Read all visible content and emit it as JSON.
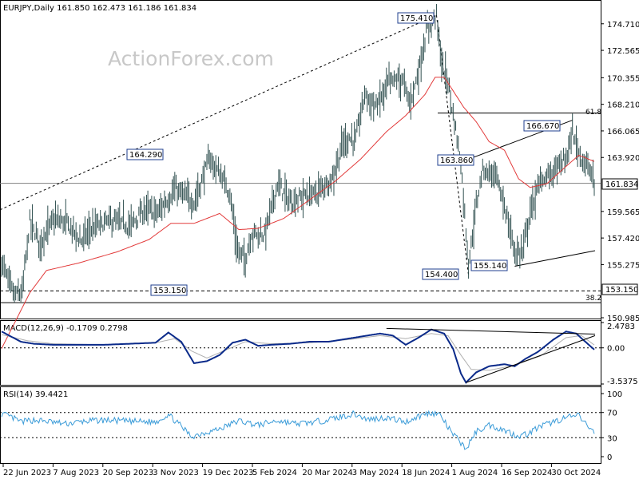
{
  "watermark": "ActionForex.com",
  "colors": {
    "price": "#2f4f4f",
    "ma": "#e23a3a",
    "macd": "#0a2a8a",
    "signal": "#b0b0b0",
    "rsi": "#3a9bd8",
    "grid": "#000000",
    "label_border": "#1f3f8f"
  },
  "chart_data": [
    {
      "type": "line",
      "panel": "price",
      "header": "EURJPY,Daily  161.850 162.473 161.186 161.834",
      "current_price_label": "161.834",
      "ylim": [
        150.985,
        176.5
      ],
      "y_ticks": [
        "174.710",
        "172.565",
        "170.355",
        "168.210",
        "166.065",
        "163.920",
        "161.834",
        "159.565",
        "157.420",
        "155.275",
        "153.150",
        "150.985"
      ],
      "x_tick_labels": [
        "22 Jun 2023",
        "7 Aug 2023",
        "20 Sep 2023",
        "3 Nov 2023",
        "19 Dec 2023",
        "5 Feb 2024",
        "20 Mar 2024",
        "3 May 2024",
        "18 Jun 2024",
        "1 Aug 2024",
        "16 Sep 2024",
        "30 Oct 2024"
      ],
      "annotations": [
        "175.410",
        "164.290",
        "153.150",
        "163.860",
        "166.670",
        "155.140",
        "154.400"
      ],
      "fib_labels": [
        "61.8",
        "38.2"
      ],
      "horizontal_levels": [
        {
          "value": 153.15,
          "label": "153.150"
        },
        {
          "value": 161.834
        },
        {
          "value": 167.5
        },
        {
          "value": 152.2
        }
      ],
      "price_anchors": [
        [
          0,
          155.5
        ],
        [
          5,
          154.0
        ],
        [
          10,
          152.8
        ],
        [
          16,
          153.0
        ],
        [
          22,
          158.7
        ],
        [
          30,
          157.0
        ],
        [
          40,
          158.8
        ],
        [
          50,
          158.7
        ],
        [
          62,
          157.2
        ],
        [
          70,
          158.2
        ],
        [
          85,
          158.8
        ],
        [
          100,
          158.4
        ],
        [
          112,
          159.7
        ],
        [
          122,
          159.5
        ],
        [
          135,
          161.3
        ],
        [
          150,
          160.3
        ],
        [
          162,
          163.8
        ],
        [
          172,
          162.3
        ],
        [
          178,
          161.0
        ],
        [
          184,
          156.3
        ],
        [
          190,
          155.8
        ],
        [
          195,
          157.8
        ],
        [
          205,
          157.7
        ],
        [
          215,
          161.8
        ],
        [
          225,
          160.3
        ],
        [
          235,
          160.8
        ],
        [
          245,
          161.0
        ],
        [
          258,
          162.3
        ],
        [
          266,
          165.0
        ],
        [
          270,
          165.5
        ],
        [
          276,
          165.3
        ],
        [
          283,
          169.0
        ],
        [
          292,
          168.0
        ],
        [
          302,
          170.0
        ],
        [
          312,
          170.3
        ],
        [
          318,
          168.3
        ],
        [
          325,
          170.8
        ],
        [
          332,
          174.5
        ],
        [
          339,
          175.4
        ],
        [
          343,
          171.5
        ],
        [
          348,
          170.0
        ],
        [
          355,
          165.5
        ],
        [
          358,
          163.5
        ],
        [
          364,
          155.3
        ],
        [
          370,
          160.0
        ],
        [
          375,
          163.0
        ],
        [
          385,
          162.5
        ],
        [
          392,
          160.0
        ],
        [
          400,
          156.3
        ],
        [
          406,
          156.3
        ],
        [
          412,
          159.5
        ],
        [
          420,
          162.0
        ],
        [
          430,
          162.8
        ],
        [
          440,
          163.8
        ],
        [
          445,
          165.9
        ],
        [
          450,
          164.3
        ],
        [
          455,
          163.5
        ],
        [
          460,
          162.5
        ],
        [
          462,
          161.834
        ]
      ],
      "ma_anchors": [
        [
          0,
          148.5
        ],
        [
          22,
          153.0
        ],
        [
          35,
          154.8
        ],
        [
          60,
          155.4
        ],
        [
          90,
          156.3
        ],
        [
          115,
          157.3
        ],
        [
          132,
          158.6
        ],
        [
          150,
          158.6
        ],
        [
          170,
          159.4
        ],
        [
          185,
          158.1
        ],
        [
          200,
          158.2
        ],
        [
          220,
          159.0
        ],
        [
          240,
          160.5
        ],
        [
          260,
          162.0
        ],
        [
          280,
          163.8
        ],
        [
          300,
          166.0
        ],
        [
          315,
          167.3
        ],
        [
          330,
          169.0
        ],
        [
          338,
          170.4
        ],
        [
          345,
          170.4
        ],
        [
          352,
          169.3
        ],
        [
          360,
          168.0
        ],
        [
          370,
          166.8
        ],
        [
          380,
          165.2
        ],
        [
          392,
          164.5
        ],
        [
          403,
          162.2
        ],
        [
          412,
          161.5
        ],
        [
          425,
          161.8
        ],
        [
          440,
          163.2
        ],
        [
          450,
          164.1
        ],
        [
          462,
          163.6
        ]
      ]
    },
    {
      "type": "line",
      "panel": "macd",
      "header": "MACD(12,26,9) -0.1709 0.2798",
      "ylim": [
        -3.5375,
        2.4783
      ],
      "y_ticks": [
        "2.4783",
        "0.00",
        "-3.5375"
      ],
      "macd_anchors": [
        [
          0,
          1.6
        ],
        [
          15,
          0.6
        ],
        [
          25,
          0.4
        ],
        [
          40,
          0.3
        ],
        [
          60,
          0.3
        ],
        [
          80,
          0.3
        ],
        [
          100,
          0.4
        ],
        [
          120,
          0.5
        ],
        [
          130,
          1.5
        ],
        [
          140,
          0.6
        ],
        [
          150,
          -1.5
        ],
        [
          160,
          -1.3
        ],
        [
          170,
          -0.7
        ],
        [
          180,
          0.5
        ],
        [
          190,
          0.8
        ],
        [
          200,
          0.2
        ],
        [
          210,
          0.3
        ],
        [
          225,
          0.4
        ],
        [
          240,
          0.6
        ],
        [
          255,
          0.6
        ],
        [
          270,
          0.9
        ],
        [
          285,
          1.2
        ],
        [
          295,
          1.4
        ],
        [
          305,
          1.2
        ],
        [
          315,
          0.3
        ],
        [
          325,
          1.0
        ],
        [
          335,
          1.8
        ],
        [
          345,
          1.4
        ],
        [
          352,
          -0.1
        ],
        [
          358,
          -2.5
        ],
        [
          362,
          -3.4
        ],
        [
          370,
          -2.4
        ],
        [
          380,
          -1.8
        ],
        [
          392,
          -1.6
        ],
        [
          400,
          -1.8
        ],
        [
          408,
          -1.1
        ],
        [
          418,
          -0.4
        ],
        [
          430,
          0.8
        ],
        [
          440,
          1.6
        ],
        [
          448,
          1.4
        ],
        [
          455,
          0.6
        ],
        [
          462,
          -0.17
        ]
      ],
      "signal_anchors": [
        [
          0,
          1.3
        ],
        [
          20,
          0.7
        ],
        [
          40,
          0.4
        ],
        [
          80,
          0.3
        ],
        [
          120,
          0.5
        ],
        [
          135,
          0.9
        ],
        [
          148,
          -0.3
        ],
        [
          160,
          -1.0
        ],
        [
          175,
          -0.2
        ],
        [
          190,
          0.6
        ],
        [
          210,
          0.4
        ],
        [
          240,
          0.5
        ],
        [
          270,
          0.8
        ],
        [
          295,
          1.2
        ],
        [
          315,
          0.9
        ],
        [
          335,
          1.4
        ],
        [
          348,
          1.2
        ],
        [
          358,
          -0.7
        ],
        [
          366,
          -2.1
        ],
        [
          380,
          -2.2
        ],
        [
          400,
          -1.7
        ],
        [
          420,
          -0.8
        ],
        [
          440,
          1.0
        ],
        [
          452,
          1.2
        ],
        [
          462,
          0.28
        ]
      ]
    },
    {
      "type": "line",
      "panel": "rsi",
      "header": "RSI(14) 39.4421",
      "ylim": [
        0,
        100
      ],
      "y_ticks": [
        "100",
        "70",
        "30",
        "0"
      ],
      "rsi_anchors": [
        [
          0,
          68
        ],
        [
          8,
          62
        ],
        [
          15,
          55
        ],
        [
          25,
          58
        ],
        [
          35,
          56
        ],
        [
          50,
          52
        ],
        [
          65,
          56
        ],
        [
          80,
          58
        ],
        [
          100,
          56
        ],
        [
          120,
          55
        ],
        [
          130,
          67
        ],
        [
          140,
          48
        ],
        [
          148,
          32
        ],
        [
          158,
          38
        ],
        [
          170,
          44
        ],
        [
          185,
          57
        ],
        [
          200,
          50
        ],
        [
          215,
          57
        ],
        [
          230,
          52
        ],
        [
          245,
          55
        ],
        [
          260,
          61
        ],
        [
          275,
          68
        ],
        [
          285,
          59
        ],
        [
          300,
          62
        ],
        [
          315,
          55
        ],
        [
          325,
          64
        ],
        [
          335,
          70
        ],
        [
          342,
          66
        ],
        [
          350,
          40
        ],
        [
          358,
          22
        ],
        [
          362,
          12
        ],
        [
          370,
          40
        ],
        [
          380,
          50
        ],
        [
          392,
          42
        ],
        [
          402,
          33
        ],
        [
          410,
          36
        ],
        [
          418,
          46
        ],
        [
          430,
          55
        ],
        [
          440,
          62
        ],
        [
          450,
          65
        ],
        [
          456,
          50
        ],
        [
          462,
          39.44
        ]
      ]
    }
  ]
}
